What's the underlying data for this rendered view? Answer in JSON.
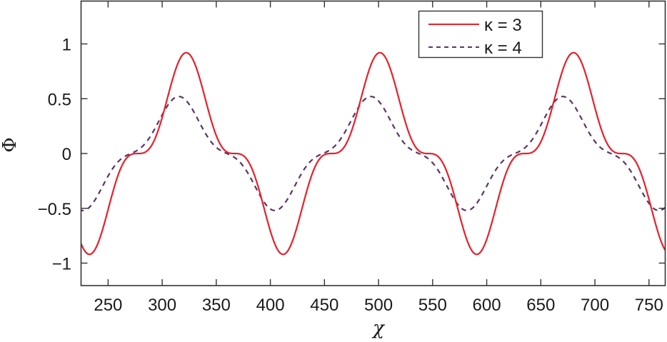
{
  "chart_data": {
    "type": "line",
    "title": "",
    "xlabel": "χ",
    "ylabel": "Φ",
    "xlim": [
      225,
      765
    ],
    "ylim": [
      -1.2,
      1.4
    ],
    "grid": false,
    "legend_position": "upper right (inside)",
    "xticks": [
      250,
      300,
      350,
      400,
      450,
      500,
      550,
      600,
      650,
      700,
      750
    ],
    "xtick_labels": [
      "250",
      "300",
      "350",
      "400",
      "450",
      "500",
      "550",
      "600",
      "650",
      "700",
      "750"
    ],
    "yticks": [
      1,
      0.5,
      0,
      -0.5,
      -1
    ],
    "ytick_labels": [
      "1",
      "0.5",
      "0",
      "−0.5",
      "−1"
    ],
    "series": [
      {
        "name": "κ = 3",
        "legend_label": "κ = 3",
        "color": "#e8202a",
        "style": "solid",
        "model": {
          "a1": 0.69,
          "a3": -0.23,
          "phase_zero": 277.5,
          "period": 179
        },
        "key_points": [
          {
            "x": 226,
            "y": -0.92,
            "feature": "trough"
          },
          {
            "x": 280,
            "y": 0.03,
            "feature": "shoulder"
          },
          {
            "x": 321,
            "y": 0.91,
            "feature": "peak"
          },
          {
            "x": 368,
            "y": 0.0,
            "feature": "shoulder"
          },
          {
            "x": 413,
            "y": -0.92,
            "feature": "trough"
          },
          {
            "x": 460,
            "y": 0.0,
            "feature": "shoulder"
          },
          {
            "x": 503,
            "y": 0.91,
            "feature": "peak"
          },
          {
            "x": 548,
            "y": 0.0,
            "feature": "shoulder"
          },
          {
            "x": 592,
            "y": -0.92,
            "feature": "trough"
          },
          {
            "x": 636,
            "y": 0.03,
            "feature": "shoulder"
          },
          {
            "x": 678,
            "y": 0.91,
            "feature": "peak"
          },
          {
            "x": 722,
            "y": 0.0,
            "feature": "shoulder"
          },
          {
            "x": 765,
            "y": -0.92,
            "feature": "trough"
          }
        ]
      },
      {
        "name": "κ = 4",
        "legend_label": "κ = 4",
        "color": "#5c3566",
        "style": "dashed",
        "model": {
          "a1": 0.42,
          "a3": -0.1,
          "phase_zero": 271,
          "period": 177.5
        },
        "key_points": [
          {
            "x": 225,
            "y": -0.5,
            "feature": "near trough"
          },
          {
            "x": 280,
            "y": 0.04,
            "feature": "shoulder"
          },
          {
            "x": 315,
            "y": 0.52,
            "feature": "peak"
          },
          {
            "x": 360,
            "y": -0.02,
            "feature": "shoulder"
          },
          {
            "x": 407,
            "y": -0.52,
            "feature": "trough"
          },
          {
            "x": 450,
            "y": 0.0,
            "feature": "shoulder"
          },
          {
            "x": 498,
            "y": 0.52,
            "feature": "peak"
          },
          {
            "x": 540,
            "y": -0.02,
            "feature": "shoulder"
          },
          {
            "x": 584,
            "y": -0.52,
            "feature": "trough"
          },
          {
            "x": 628,
            "y": 0.0,
            "feature": "shoulder"
          },
          {
            "x": 670,
            "y": 0.52,
            "feature": "peak"
          },
          {
            "x": 712,
            "y": -0.02,
            "feature": "shoulder"
          },
          {
            "x": 750,
            "y": -0.53,
            "feature": "trough"
          },
          {
            "x": 765,
            "y": -0.33,
            "feature": "edge"
          }
        ]
      }
    ]
  },
  "legend": {
    "items": [
      {
        "label": "κ = 3"
      },
      {
        "label": "κ = 4"
      }
    ]
  },
  "axes": {
    "x_label": "χ",
    "y_label": "Φ"
  }
}
